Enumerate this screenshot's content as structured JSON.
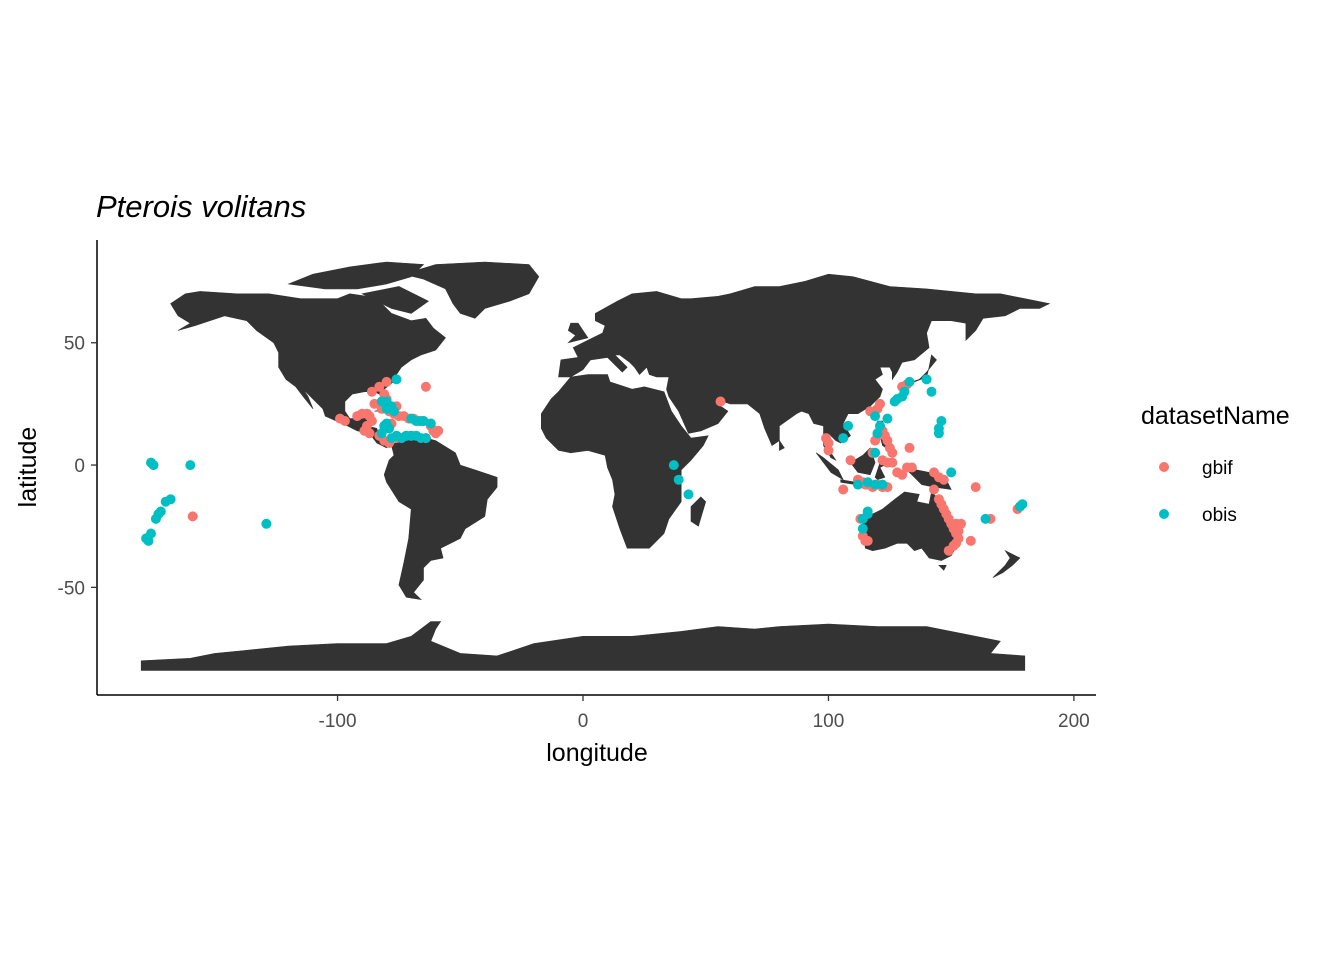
{
  "chart_data": {
    "type": "scatter",
    "title": "Pterois volitans",
    "xlabel": "longitude",
    "ylabel": "latitude",
    "xlim": [
      -198,
      209
    ],
    "ylim": [
      -94,
      92
    ],
    "xticks": [
      -100,
      0,
      100,
      200
    ],
    "yticks": [
      -50,
      0,
      50
    ],
    "grid": false,
    "legend": {
      "title": "datasetName",
      "position": "right"
    },
    "basemap": "world-land-polygons",
    "land_color": "#333333",
    "series": [
      {
        "name": "gbif",
        "color": "#F8766D",
        "points": [
          [
            -99,
            19
          ],
          [
            -97,
            18
          ],
          [
            -92,
            20
          ],
          [
            -90,
            21
          ],
          [
            -88,
            21
          ],
          [
            -87,
            20
          ],
          [
            -86,
            18
          ],
          [
            -88,
            16
          ],
          [
            -89,
            14
          ],
          [
            -87,
            13
          ],
          [
            -86,
            30
          ],
          [
            -83,
            32
          ],
          [
            -80,
            34
          ],
          [
            -81,
            29
          ],
          [
            -80,
            27
          ],
          [
            -82,
            25
          ],
          [
            -80,
            25
          ],
          [
            -82,
            23
          ],
          [
            -79,
            22
          ],
          [
            -77,
            21
          ],
          [
            -75,
            20
          ],
          [
            -73,
            20
          ],
          [
            -71,
            19
          ],
          [
            -69,
            19
          ],
          [
            -67,
            18
          ],
          [
            -65,
            18
          ],
          [
            -62,
            16
          ],
          [
            -61,
            14
          ],
          [
            -60,
            13
          ],
          [
            -59,
            14
          ],
          [
            -64,
            32
          ],
          [
            -83,
            12
          ],
          [
            -81,
            10
          ],
          [
            -79,
            9
          ],
          [
            -76,
            11
          ],
          [
            -74,
            11
          ],
          [
            -72,
            12
          ],
          [
            -70,
            12
          ],
          [
            -64,
            11
          ],
          [
            -78,
            17
          ],
          [
            -85,
            25
          ],
          [
            -76,
            24
          ],
          [
            -159,
            -21
          ],
          [
            56,
            26
          ],
          [
            100,
            9
          ],
          [
            100,
            6
          ],
          [
            99,
            11
          ],
          [
            106,
            -10
          ],
          [
            109,
            2
          ],
          [
            112,
            -6
          ],
          [
            114,
            -7
          ],
          [
            115,
            -8
          ],
          [
            116,
            -8
          ],
          [
            118,
            -9
          ],
          [
            120,
            -8
          ],
          [
            122,
            -9
          ],
          [
            124,
            -9
          ],
          [
            113,
            -22
          ],
          [
            114,
            -29
          ],
          [
            115,
            -31
          ],
          [
            116,
            -31
          ],
          [
            118,
            5
          ],
          [
            119,
            10
          ],
          [
            120,
            12
          ],
          [
            121,
            13
          ],
          [
            122,
            14
          ],
          [
            123,
            12
          ],
          [
            124,
            10
          ],
          [
            125,
            7
          ],
          [
            126,
            5
          ],
          [
            122,
            2
          ],
          [
            124,
            1
          ],
          [
            126,
            1
          ],
          [
            128,
            -3
          ],
          [
            130,
            -4
          ],
          [
            132,
            -1
          ],
          [
            134,
            -1
          ],
          [
            117,
            22
          ],
          [
            120,
            23
          ],
          [
            121,
            25
          ],
          [
            130,
            32
          ],
          [
            132,
            33
          ],
          [
            133,
            7
          ],
          [
            143,
            -10
          ],
          [
            145,
            -14
          ],
          [
            146,
            -16
          ],
          [
            147,
            -18
          ],
          [
            148,
            -20
          ],
          [
            149,
            -22
          ],
          [
            150,
            -24
          ],
          [
            151,
            -26
          ],
          [
            152,
            -28
          ],
          [
            153,
            -30
          ],
          [
            152,
            -32
          ],
          [
            151,
            -33
          ],
          [
            149,
            -35
          ],
          [
            153,
            -27
          ],
          [
            154,
            -24
          ],
          [
            152,
            -24
          ],
          [
            158,
            -31
          ],
          [
            160,
            -9
          ],
          [
            166,
            -22
          ],
          [
            177,
            -18
          ],
          [
            178,
            -17
          ],
          [
            145,
            -5
          ],
          [
            147,
            -6
          ],
          [
            143,
            -3
          ]
        ]
      },
      {
        "name": "obis",
        "color": "#00BFC4",
        "points": [
          [
            -176,
            1
          ],
          [
            -175,
            0
          ],
          [
            -160,
            0
          ],
          [
            -177,
            -31
          ],
          [
            -178,
            -30
          ],
          [
            -176,
            -28
          ],
          [
            -174,
            -22
          ],
          [
            -173,
            -20
          ],
          [
            -172,
            -19
          ],
          [
            -170,
            -15
          ],
          [
            -168,
            -14
          ],
          [
            -129,
            -24
          ],
          [
            -82,
            26
          ],
          [
            -80,
            26
          ],
          [
            -78,
            24
          ],
          [
            -80,
            23
          ],
          [
            -77,
            22
          ],
          [
            -76,
            35
          ],
          [
            -79,
            15
          ],
          [
            -82,
            13
          ],
          [
            -78,
            11
          ],
          [
            -76,
            12
          ],
          [
            -74,
            11
          ],
          [
            -72,
            12
          ],
          [
            -70,
            12
          ],
          [
            -68,
            12
          ],
          [
            -66,
            11
          ],
          [
            -64,
            11
          ],
          [
            -66,
            18
          ],
          [
            -65,
            18
          ],
          [
            -62,
            17
          ],
          [
            -68,
            18
          ],
          [
            -70,
            19
          ],
          [
            -80,
            17
          ],
          [
            -81,
            16
          ],
          [
            37,
            0
          ],
          [
            39,
            -6
          ],
          [
            43,
            -12
          ],
          [
            106,
            11
          ],
          [
            108,
            16
          ],
          [
            112,
            -8
          ],
          [
            116,
            -7
          ],
          [
            119,
            -8
          ],
          [
            122,
            -8
          ],
          [
            114,
            -22
          ],
          [
            114,
            -26
          ],
          [
            116,
            -20
          ],
          [
            116,
            -19
          ],
          [
            119,
            5
          ],
          [
            120,
            13
          ],
          [
            121,
            16
          ],
          [
            119,
            20
          ],
          [
            124,
            19
          ],
          [
            127,
            26
          ],
          [
            128,
            27
          ],
          [
            130,
            28
          ],
          [
            131,
            30
          ],
          [
            133,
            34
          ],
          [
            140,
            35
          ],
          [
            142,
            30
          ],
          [
            145,
            13
          ],
          [
            145,
            15
          ],
          [
            146,
            18
          ],
          [
            150,
            -3
          ],
          [
            164,
            -22
          ],
          [
            178,
            -17
          ],
          [
            179,
            -16
          ]
        ]
      }
    ]
  }
}
